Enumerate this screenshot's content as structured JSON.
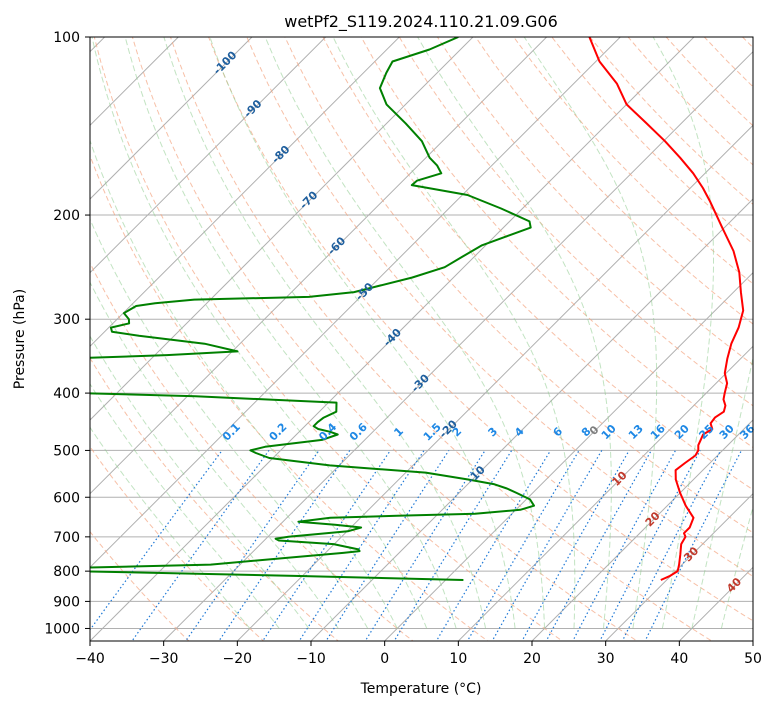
{
  "chart_data": {
    "type": "line",
    "subtype": "skew-T log-p diagram",
    "title": "wetPf2_S119.2024.110.21.09.G06",
    "xlabel": "Temperature (°C)",
    "ylabel": "Pressure (hPa)",
    "xlim": [
      -40,
      50
    ],
    "ylim": [
      1050,
      100
    ],
    "yscale": "log",
    "grid": true,
    "x_ticks": [
      "−40",
      "−30",
      "−20",
      "−10",
      "0",
      "10",
      "20",
      "30",
      "40",
      "50"
    ],
    "y_ticks": [
      "100",
      "200",
      "300",
      "400",
      "500",
      "600",
      "700",
      "800",
      "900",
      "1000"
    ],
    "series": [
      {
        "kind": "temperature",
        "color": "#ff0000",
        "pressure": [
          828,
          815,
          800,
          780,
          750,
          720,
          700,
          690,
          675,
          650,
          620,
          590,
          560,
          540,
          525,
          510,
          500,
          490,
          480,
          470,
          460,
          450,
          440,
          430,
          420,
          410,
          400,
          385,
          370,
          350,
          330,
          310,
          290,
          270,
          250,
          230,
          210,
          190,
          180,
          170,
          160,
          150,
          140,
          130,
          120,
          110,
          100
        ],
        "temperature": [
          29.2,
          29.9,
          30.3,
          29.6,
          28.4,
          27.1,
          26.7,
          26.0,
          26.0,
          25.2,
          22.5,
          20.0,
          17.6,
          16.3,
          16.6,
          17.0,
          16.7,
          16.0,
          15.6,
          15.2,
          15.7,
          14.7,
          14.5,
          14.9,
          14.3,
          13.2,
          12.5,
          11.5,
          9.8,
          8.2,
          6.7,
          5.5,
          3.8,
          1.0,
          -1.9,
          -5.6,
          -10.3,
          -15.4,
          -18.3,
          -21.6,
          -25.5,
          -29.8,
          -34.7,
          -40.0,
          -44.1,
          -49.5,
          -54.2
        ]
      },
      {
        "kind": "dewpoint",
        "color": "#008000",
        "pressure": [
          828,
          815,
          800,
          797,
          793,
          790,
          780,
          760,
          745,
          740,
          735,
          720,
          710,
          705,
          700,
          685,
          675,
          668,
          660,
          650,
          645,
          640,
          630,
          620,
          605,
          590,
          580,
          570,
          560,
          545,
          530,
          515,
          505,
          500,
          493,
          480,
          470,
          465,
          460,
          455,
          448,
          440,
          430,
          415,
          405,
          400,
          395,
          350,
          345,
          340,
          330,
          320,
          315,
          310,
          305,
          300,
          293,
          285,
          282,
          278,
          275,
          270,
          263,
          255,
          245,
          235,
          225,
          210,
          205,
          195,
          185,
          180,
          178,
          175,
          170,
          165,
          160,
          150,
          140,
          130,
          122,
          115,
          110,
          105,
          100
        ],
        "temperature": [
          2.4,
          -21.1,
          -51.7,
          -70.0,
          -79.8,
          -52.1,
          -34.0,
          -24.8,
          -17.6,
          -15.6,
          -16.0,
          -20.1,
          -28.0,
          -28.7,
          -27.2,
          -19.9,
          -18.6,
          -22.5,
          -27.9,
          -24.1,
          -15.3,
          -5.0,
          0.6,
          1.9,
          0.5,
          -2.2,
          -4.1,
          -6.5,
          -10.6,
          -17.3,
          -31.3,
          -40.5,
          -43.0,
          -44.1,
          -42.6,
          -35.8,
          -34.4,
          -35.8,
          -37.8,
          -38.8,
          -38.8,
          -38.6,
          -37.7,
          -38.9,
          -58.9,
          -74.9,
          -82.3,
          -82.3,
          -68.4,
          -59.3,
          -64.8,
          -74.8,
          -79.0,
          -79.7,
          -77.8,
          -78.4,
          -79.9,
          -79.2,
          -77.0,
          -72.2,
          -57.0,
          -51.5,
          -48.8,
          -45.6,
          -42.6,
          -41.6,
          -40.5,
          -36.3,
          -37.3,
          -42.9,
          -49.3,
          -55.6,
          -58.2,
          -58.1,
          -55.8,
          -57.4,
          -59.5,
          -62.8,
          -67.4,
          -72.6,
          -75.7,
          -76.9,
          -77.6,
          -74.2,
          -72.0
        ]
      }
    ],
    "dry_adiabat_labels": [
      "-100",
      "-90",
      "-80",
      "-70",
      "-60",
      "-50",
      "-40",
      "-30",
      "-20",
      "-10"
    ],
    "dry_adiabat_values": [
      -100,
      -90,
      -80,
      -70,
      -60,
      -50,
      -40,
      -30,
      -20,
      -10
    ],
    "moist_adiabat_labels": [
      "0",
      "10",
      "20",
      "30",
      "40"
    ],
    "moist_adiabat_values": [
      0,
      10,
      20,
      30,
      40
    ],
    "mixing_ratio_labels": [
      "0.1",
      "0.2",
      "0.4",
      "0.6",
      "1",
      "1.5",
      "2",
      "3",
      "4",
      "6",
      "8",
      "10",
      "13",
      "16",
      "20",
      "25",
      "30",
      "36"
    ],
    "mixing_ratio_values": [
      0.1,
      0.2,
      0.4,
      0.6,
      1,
      1.5,
      2,
      3,
      4,
      6,
      8,
      10,
      13,
      16,
      20,
      25,
      30,
      36
    ],
    "colors": {
      "temperature": "#ff0000",
      "dewpoint": "#008000",
      "isotherm_grid": "#b0b0b0",
      "dry_adiabat": "#f4a582",
      "moist_adiabat": "#8fcc8f",
      "mixing_ratio": "#1e78d6",
      "dry_adiabat_label": "#1f5f9e",
      "moist_adiabat_label": "#c0392b",
      "zero_label": "#7f7f7f",
      "mixing_ratio_label": "#1e88e5"
    }
  }
}
